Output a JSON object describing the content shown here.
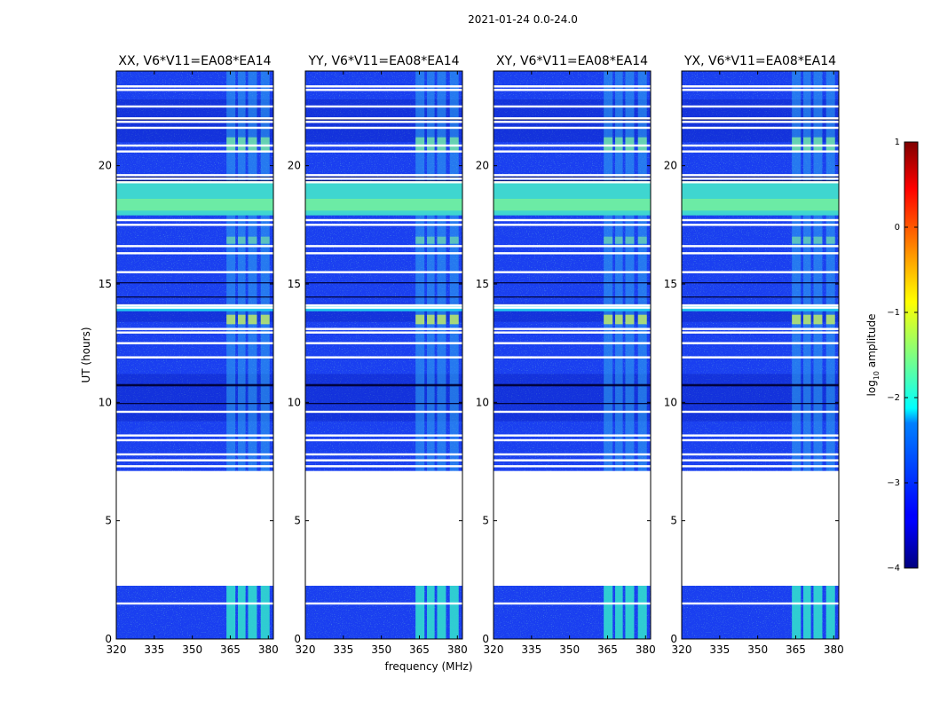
{
  "figure": {
    "suptitle": "2021-01-24 0.0-24.0"
  },
  "chart_data": {
    "type": "heatmap",
    "panels": [
      {
        "title": "XX, V6*V11=EA08*EA14"
      },
      {
        "title": "YY, V6*V11=EA08*EA14"
      },
      {
        "title": "XY, V6*V11=EA08*EA14"
      },
      {
        "title": "YX, V6*V11=EA08*EA14"
      }
    ],
    "xlabel": "frequency (MHz)",
    "ylabel": "UT (hours)",
    "xlim": [
      320,
      382
    ],
    "ylim": [
      0,
      24
    ],
    "xticks": [
      "320",
      "335",
      "350",
      "365",
      "380"
    ],
    "xtick_values": [
      320,
      335,
      350,
      365,
      380
    ],
    "yticks": [
      "0",
      "5",
      "10",
      "15",
      "20"
    ],
    "ytick_values": [
      0,
      5,
      10,
      15,
      20
    ],
    "colorbar": {
      "label": "log10 amplitude",
      "label_main": "log",
      "label_sub": "10",
      "label_rest": " amplitude",
      "range": [
        -4,
        1
      ],
      "ticks": [
        "1",
        "0",
        "−1",
        "−2",
        "−3",
        "−4"
      ],
      "tick_values": [
        1,
        0,
        -1,
        -2,
        -3,
        -4
      ],
      "colormap": "jet"
    },
    "data_gaps_hours": [
      [
        2.25,
        7.1
      ]
    ],
    "flagged_rows_hours": [
      1.5,
      7.3,
      7.55,
      7.8,
      8.4,
      8.6,
      9.6,
      11.9,
      12.5,
      12.95,
      13.1,
      14.0,
      14.1,
      15.5,
      16.3,
      16.6,
      17.5,
      17.7,
      19.3,
      19.45,
      19.6,
      20.6,
      20.85,
      21.6,
      21.85,
      22.0,
      22.5,
      23.2,
      23.35
    ],
    "bright_band_hours": [
      [
        17.9,
        19.3
      ]
    ],
    "rfi_channels_mhz": [
      [
        363.5,
        367
      ],
      [
        368,
        371
      ],
      [
        372,
        375.5
      ],
      [
        377,
        380.5
      ]
    ]
  }
}
